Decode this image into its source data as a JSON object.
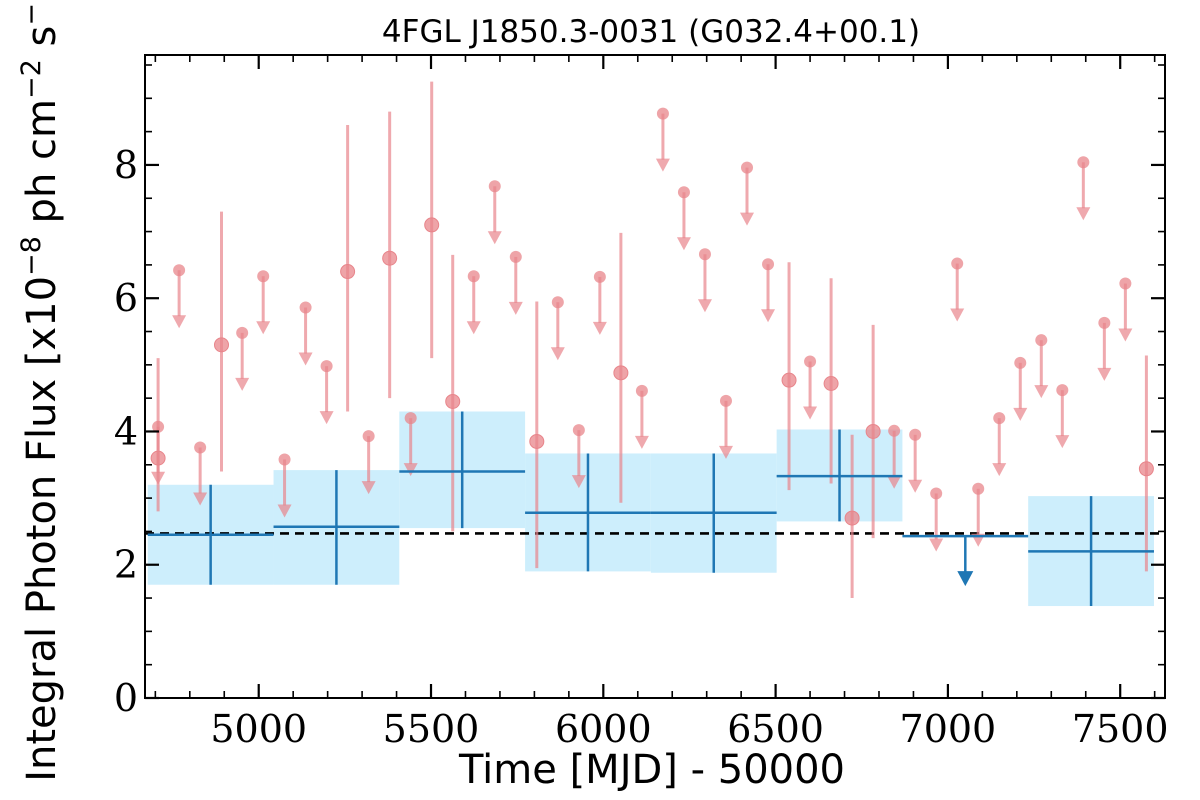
{
  "chart_data": {
    "type": "scatter",
    "title": "4FGL J1850.3-0031 (G032.4+00.1)",
    "xlabel": "Time [MJD] - 50000",
    "ylabel": "Integral Photon Flux [x10",
    "ylabel_exp1": "−8",
    "ylabel_mid": " ph cm",
    "ylabel_exp2": "−2",
    "ylabel_mid2": " s",
    "ylabel_exp3": "−1",
    "ylabel_end": "]",
    "xlim": [
      4670,
      7630
    ],
    "ylim": [
      0,
      9.65
    ],
    "x_ticks": [
      5000,
      5500,
      6000,
      6500,
      7000,
      7500
    ],
    "x_tick_labels": [
      "5000",
      "5500",
      "6000",
      "6500",
      "7000",
      "7500"
    ],
    "y_ticks": [
      0,
      2,
      4,
      6,
      8
    ],
    "y_tick_labels": [
      "0",
      "2",
      "4",
      "6",
      "8"
    ],
    "reference_line": {
      "y": 2.47,
      "style": "dashed",
      "color": "#000000"
    },
    "colors": {
      "short_bins": "#e8858b",
      "long_bins": "#1f77b4",
      "long_band": "#cdeefc"
    },
    "series": [
      {
        "points": [
          {
            "x": 4708,
            "y": 3.6,
            "yerr": [
              0.8,
              1.5
            ]
          },
          {
            "x": 4892,
            "y": 5.3,
            "yerr": [
              1.9,
              2.0
            ]
          },
          {
            "x": 5258,
            "y": 6.4,
            "yerr": [
              2.1,
              2.2
            ]
          },
          {
            "x": 5380,
            "y": 6.6,
            "yerr": [
              2.1,
              2.2
            ]
          },
          {
            "x": 5502,
            "y": 7.1,
            "yerr": [
              2.0,
              2.15
            ]
          },
          {
            "x": 5563,
            "y": 4.45,
            "yerr": [
              1.95,
              2.2
            ]
          },
          {
            "x": 5807,
            "y": 3.85,
            "yerr": [
              1.9,
              2.1
            ]
          },
          {
            "x": 6051,
            "y": 4.88,
            "yerr": [
              1.95,
              2.1
            ]
          },
          {
            "x": 6539,
            "y": 4.77,
            "yerr": [
              1.65,
              1.77
            ]
          },
          {
            "x": 6661,
            "y": 4.72,
            "yerr": [
              1.5,
              1.58
            ]
          },
          {
            "x": 6722,
            "y": 2.7,
            "yerr": [
              1.2,
              1.25
            ]
          },
          {
            "x": 6783,
            "y": 4.0,
            "yerr": [
              1.6,
              1.6
            ]
          },
          {
            "x": 7576,
            "y": 3.44,
            "yerr": [
              1.54,
              1.7
            ]
          }
        ],
        "upper_limits": [
          {
            "x": 4708,
            "y": 4.07
          },
          {
            "x": 4769,
            "y": 6.42
          },
          {
            "x": 4830,
            "y": 3.76
          },
          {
            "x": 4952,
            "y": 5.48
          },
          {
            "x": 5013,
            "y": 6.33
          },
          {
            "x": 5075,
            "y": 3.58
          },
          {
            "x": 5136,
            "y": 5.86
          },
          {
            "x": 5197,
            "y": 4.98
          },
          {
            "x": 5319,
            "y": 3.93
          },
          {
            "x": 5441,
            "y": 4.2
          },
          {
            "x": 5624,
            "y": 6.33
          },
          {
            "x": 5685,
            "y": 7.68
          },
          {
            "x": 5746,
            "y": 6.62
          },
          {
            "x": 5868,
            "y": 5.94
          },
          {
            "x": 5929,
            "y": 4.02
          },
          {
            "x": 5990,
            "y": 6.32
          },
          {
            "x": 6112,
            "y": 4.61
          },
          {
            "x": 6173,
            "y": 8.77
          },
          {
            "x": 6234,
            "y": 7.59
          },
          {
            "x": 6295,
            "y": 6.66
          },
          {
            "x": 6356,
            "y": 4.46
          },
          {
            "x": 6417,
            "y": 7.96
          },
          {
            "x": 6478,
            "y": 6.51
          },
          {
            "x": 6600,
            "y": 5.05
          },
          {
            "x": 6844,
            "y": 4.01
          },
          {
            "x": 6905,
            "y": 3.95
          },
          {
            "x": 6966,
            "y": 3.07
          },
          {
            "x": 7027,
            "y": 6.52
          },
          {
            "x": 7088,
            "y": 3.14
          },
          {
            "x": 7149,
            "y": 4.2
          },
          {
            "x": 7210,
            "y": 5.03
          },
          {
            "x": 7271,
            "y": 5.37
          },
          {
            "x": 7332,
            "y": 4.62
          },
          {
            "x": 7393,
            "y": 8.04
          },
          {
            "x": 7454,
            "y": 5.63
          },
          {
            "x": 7515,
            "y": 6.22
          }
        ]
      },
      {
        "bins": [
          {
            "x0": 4678,
            "x1": 5043,
            "y": 2.45,
            "ylo": 1.7,
            "yhi": 3.2
          },
          {
            "x0": 5043,
            "x1": 5408,
            "y": 2.57,
            "ylo": 1.7,
            "yhi": 3.42
          },
          {
            "x0": 5408,
            "x1": 5773,
            "y": 3.4,
            "ylo": 2.55,
            "yhi": 4.3
          },
          {
            "x0": 5773,
            "x1": 6138,
            "y": 2.78,
            "ylo": 1.9,
            "yhi": 3.67
          },
          {
            "x0": 6138,
            "x1": 6503,
            "y": 2.78,
            "ylo": 1.88,
            "yhi": 3.67
          },
          {
            "x0": 6503,
            "x1": 6868,
            "y": 3.33,
            "ylo": 2.65,
            "yhi": 4.03
          },
          {
            "x0": 7233,
            "x1": 7598,
            "y": 2.2,
            "ylo": 1.38,
            "yhi": 3.03
          }
        ],
        "upper_limit_bins": [
          {
            "x0": 6868,
            "x1": 7233,
            "y": 2.43
          }
        ]
      }
    ]
  }
}
